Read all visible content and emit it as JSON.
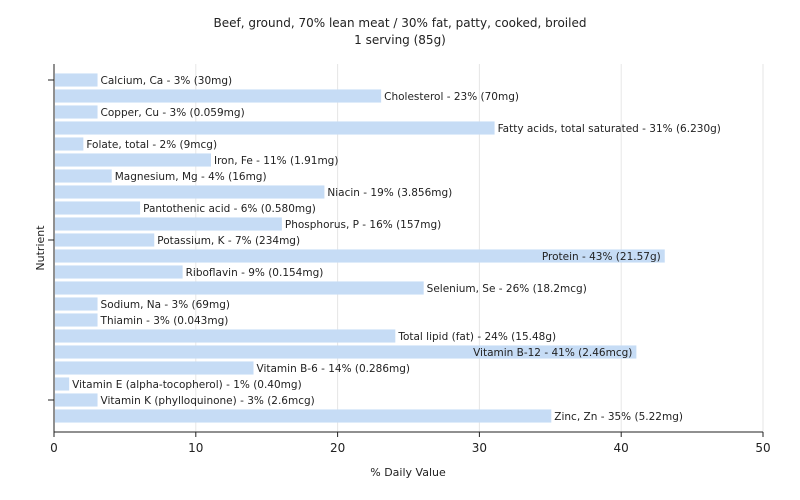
{
  "chart_data": {
    "type": "bar",
    "orientation": "horizontal",
    "title": "Beef, ground, 70% lean meat / 30% fat, patty, cooked, broiled",
    "subtitle": "1 serving (85g)",
    "xlabel": "% Daily Value",
    "ylabel": "Nutrient",
    "xlim": [
      0,
      50
    ],
    "xticks": [
      0,
      10,
      20,
      30,
      40,
      50
    ],
    "grid": true,
    "bar_color": "#c6dcf5",
    "categories": [
      "Calcium, Ca",
      "Cholesterol",
      "Copper, Cu",
      "Fatty acids, total saturated",
      "Folate, total",
      "Iron, Fe",
      "Magnesium, Mg",
      "Niacin",
      "Pantothenic acid",
      "Phosphorus, P",
      "Potassium, K",
      "Protein",
      "Riboflavin",
      "Selenium, Se",
      "Sodium, Na",
      "Thiamin",
      "Total lipid (fat)",
      "Vitamin B-12",
      "Vitamin B-6",
      "Vitamin E (alpha-tocopherol)",
      "Vitamin K (phylloquinone)",
      "Zinc, Zn"
    ],
    "values": [
      3,
      23,
      3,
      31,
      2,
      11,
      4,
      19,
      6,
      16,
      7,
      43,
      9,
      26,
      3,
      3,
      24,
      41,
      14,
      1,
      3,
      35
    ],
    "labels": [
      "Calcium, Ca - 3% (30mg)",
      "Cholesterol - 23% (70mg)",
      "Copper, Cu - 3% (0.059mg)",
      "Fatty acids, total saturated - 31% (6.230g)",
      "Folate, total - 2% (9mcg)",
      "Iron, Fe - 11% (1.91mg)",
      "Magnesium, Mg - 4% (16mg)",
      "Niacin - 19% (3.856mg)",
      "Pantothenic acid - 6% (0.580mg)",
      "Phosphorus, P - 16% (157mg)",
      "Potassium, K - 7% (234mg)",
      "Protein - 43% (21.57g)",
      "Riboflavin - 9% (0.154mg)",
      "Selenium, Se - 26% (18.2mcg)",
      "Sodium, Na - 3% (69mg)",
      "Thiamin - 3% (0.043mg)",
      "Total lipid (fat) - 24% (15.48g)",
      "Vitamin B-12 - 41% (2.46mcg)",
      "Vitamin B-6 - 14% (0.286mg)",
      "Vitamin E (alpha-tocopherol) - 1% (0.40mg)",
      "Vitamin K (phylloquinone) - 3% (2.6mcg)",
      "Zinc, Zn - 35% (5.22mg)"
    ],
    "inside_label_indices": [
      11,
      17
    ]
  }
}
